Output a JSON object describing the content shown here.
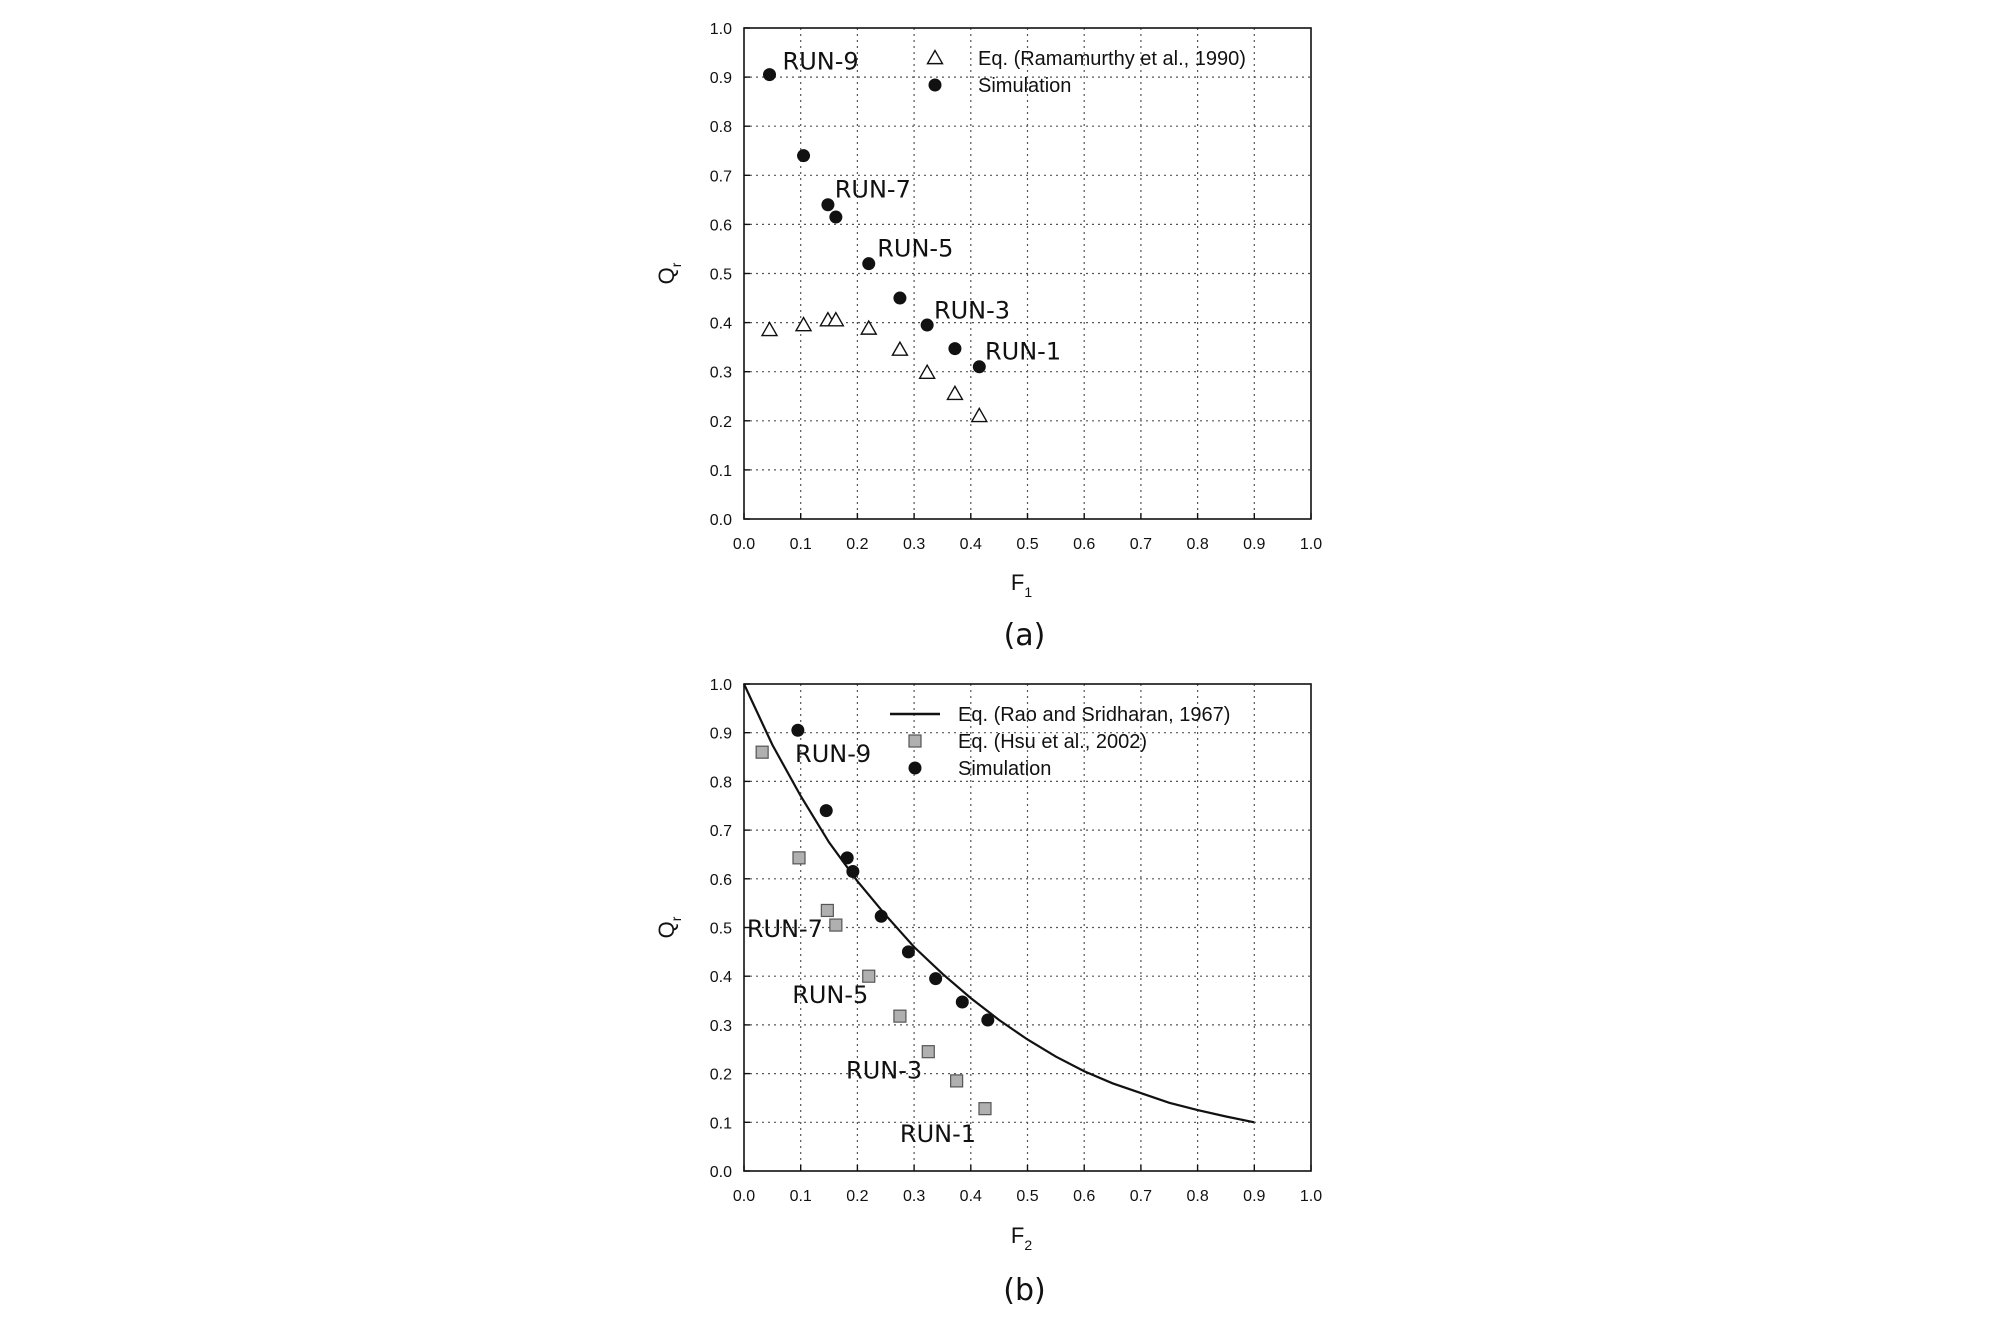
{
  "chart_data": [
    {
      "type": "scatter",
      "caption": "(a)",
      "xlabel": "F",
      "xlabel_sub": "1",
      "ylabel": "Q",
      "ylabel_sub": "r",
      "xlim": [
        0,
        1
      ],
      "ylim": [
        0,
        1
      ],
      "xticks": [
        "0.0",
        "0.1",
        "0.2",
        "0.3",
        "0.4",
        "0.5",
        "0.6",
        "0.7",
        "0.8",
        "0.9",
        "1.0"
      ],
      "yticks": [
        "0.0",
        "0.1",
        "0.2",
        "0.3",
        "0.4",
        "0.5",
        "0.6",
        "0.7",
        "0.8",
        "0.9",
        "1.0"
      ],
      "grid": true,
      "legend_position": "top-right",
      "series": [
        {
          "name": "Eq. (Ramamurthy et al., 1990)",
          "marker": "triangle-open",
          "color": "#111111",
          "points": [
            [
              0.045,
              0.385
            ],
            [
              0.105,
              0.395
            ],
            [
              0.148,
              0.405
            ],
            [
              0.162,
              0.405
            ],
            [
              0.22,
              0.388
            ],
            [
              0.275,
              0.345
            ],
            [
              0.323,
              0.298
            ],
            [
              0.372,
              0.255
            ],
            [
              0.415,
              0.21
            ]
          ]
        },
        {
          "name": "Simulation",
          "marker": "circle-filled",
          "color": "#111111",
          "points": [
            [
              0.045,
              0.905
            ],
            [
              0.105,
              0.74
            ],
            [
              0.148,
              0.64
            ],
            [
              0.162,
              0.615
            ],
            [
              0.22,
              0.52
            ],
            [
              0.275,
              0.45
            ],
            [
              0.323,
              0.395
            ],
            [
              0.372,
              0.347
            ],
            [
              0.415,
              0.31
            ]
          ]
        }
      ],
      "annotations": [
        {
          "text": "RUN-9",
          "x": 0.068,
          "y": 0.915
        },
        {
          "text": "RUN-7",
          "x": 0.16,
          "y": 0.655
        },
        {
          "text": "RUN-5",
          "x": 0.235,
          "y": 0.535
        },
        {
          "text": "RUN-3",
          "x": 0.335,
          "y": 0.408
        },
        {
          "text": "RUN-1",
          "x": 0.425,
          "y": 0.325
        }
      ]
    },
    {
      "type": "scatter",
      "caption": "(b)",
      "xlabel": "F",
      "xlabel_sub": "2",
      "ylabel": "Q",
      "ylabel_sub": "r",
      "xlim": [
        0,
        1
      ],
      "ylim": [
        0,
        1
      ],
      "xticks": [
        "0.0",
        "0.1",
        "0.2",
        "0.3",
        "0.4",
        "0.5",
        "0.6",
        "0.7",
        "0.8",
        "0.9",
        "1.0"
      ],
      "yticks": [
        "0.0",
        "0.1",
        "0.2",
        "0.3",
        "0.4",
        "0.5",
        "0.6",
        "0.7",
        "0.8",
        "0.9",
        "1.0"
      ],
      "grid": true,
      "legend_position": "top-right",
      "series": [
        {
          "name": "Eq. (Rao and Sridharan, 1967)",
          "marker": "line",
          "color": "#111111",
          "points": [
            [
              0.0,
              1.0
            ],
            [
              0.05,
              0.875
            ],
            [
              0.1,
              0.77
            ],
            [
              0.15,
              0.675
            ],
            [
              0.2,
              0.595
            ],
            [
              0.25,
              0.525
            ],
            [
              0.3,
              0.46
            ],
            [
              0.35,
              0.405
            ],
            [
              0.4,
              0.355
            ],
            [
              0.45,
              0.31
            ],
            [
              0.5,
              0.27
            ],
            [
              0.55,
              0.235
            ],
            [
              0.6,
              0.205
            ],
            [
              0.65,
              0.18
            ],
            [
              0.7,
              0.16
            ],
            [
              0.75,
              0.14
            ],
            [
              0.8,
              0.125
            ],
            [
              0.85,
              0.112
            ],
            [
              0.9,
              0.1
            ]
          ]
        },
        {
          "name": "Eq. (Hsu et al., 2002)",
          "marker": "square-filled",
          "color": "#b0b0b0",
          "points": [
            [
              0.032,
              0.86
            ],
            [
              0.097,
              0.643
            ],
            [
              0.147,
              0.535
            ],
            [
              0.162,
              0.505
            ],
            [
              0.22,
              0.4
            ],
            [
              0.275,
              0.318
            ],
            [
              0.325,
              0.245
            ],
            [
              0.375,
              0.185
            ],
            [
              0.425,
              0.128
            ]
          ]
        },
        {
          "name": "Simulation",
          "marker": "circle-filled",
          "color": "#111111",
          "points": [
            [
              0.095,
              0.905
            ],
            [
              0.145,
              0.74
            ],
            [
              0.182,
              0.643
            ],
            [
              0.192,
              0.615
            ],
            [
              0.242,
              0.523
            ],
            [
              0.29,
              0.45
            ],
            [
              0.338,
              0.395
            ],
            [
              0.385,
              0.347
            ],
            [
              0.43,
              0.31
            ]
          ]
        }
      ],
      "annotations": [
        {
          "text": "RUN-9",
          "x": 0.09,
          "y": 0.84
        },
        {
          "text": "RUN-7",
          "x": 0.005,
          "y": 0.48
        },
        {
          "text": "RUN-5",
          "x": 0.085,
          "y": 0.345
        },
        {
          "text": "RUN-3",
          "x": 0.18,
          "y": 0.19
        },
        {
          "text": "RUN-1",
          "x": 0.275,
          "y": 0.06
        }
      ]
    }
  ]
}
